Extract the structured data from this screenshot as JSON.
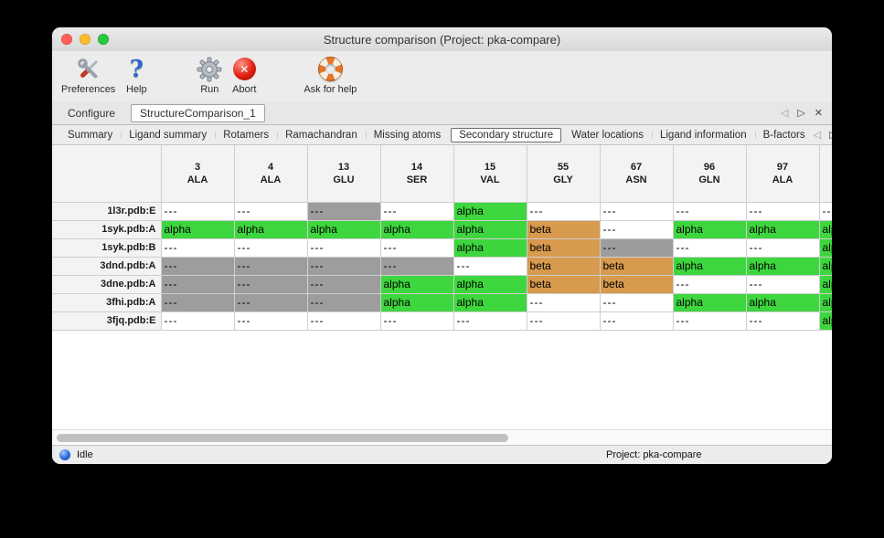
{
  "colors": {
    "alpha": "#3ed63e",
    "beta": "#d79a4e",
    "missing": "#9d9d9d",
    "blank": "#ffffff",
    "status_ball": "#2b6ae0",
    "traffic_close": "#ff5f57",
    "traffic_minimize": "#febc2e",
    "traffic_zoom": "#28c840"
  },
  "window": {
    "title": "Structure comparison (Project: pka-compare)"
  },
  "toolbar": {
    "items": [
      {
        "name": "preferences",
        "label": "Preferences",
        "icon": "tools-icon",
        "gap_before": false
      },
      {
        "name": "help",
        "label": "Help",
        "icon": "question-icon",
        "gap_before": false
      },
      {
        "name": "run",
        "label": "Run",
        "icon": "gear-icon",
        "gap_before": true
      },
      {
        "name": "abort",
        "label": "Abort",
        "icon": "abort-icon",
        "gap_before": false
      },
      {
        "name": "ask-for-help",
        "label": "Ask for help",
        "icon": "lifering-icon",
        "gap_before": true
      }
    ]
  },
  "tabs": {
    "items": [
      {
        "label": "Configure",
        "selected": false
      },
      {
        "label": "StructureComparison_1",
        "selected": true
      }
    ],
    "controls": {
      "prev": "◁",
      "next": "▷",
      "close": "✕"
    }
  },
  "subtabs": {
    "items": [
      {
        "label": "Summary",
        "selected": false
      },
      {
        "label": "Ligand summary",
        "selected": false
      },
      {
        "label": "Rotamers",
        "selected": false
      },
      {
        "label": "Ramachandran",
        "selected": false
      },
      {
        "label": "Missing atoms",
        "selected": false
      },
      {
        "label": "Secondary structure",
        "selected": true
      },
      {
        "label": "Water locations",
        "selected": false
      },
      {
        "label": "Ligand information",
        "selected": false
      },
      {
        "label": "B-factors",
        "selected": false
      }
    ],
    "controls": {
      "prev": "◁",
      "next": "▷"
    }
  },
  "table": {
    "columns": [
      {
        "num": "3",
        "res": "ALA"
      },
      {
        "num": "4",
        "res": "ALA"
      },
      {
        "num": "13",
        "res": "GLU"
      },
      {
        "num": "14",
        "res": "SER"
      },
      {
        "num": "15",
        "res": "VAL"
      },
      {
        "num": "55",
        "res": "GLY"
      },
      {
        "num": "67",
        "res": "ASN"
      },
      {
        "num": "96",
        "res": "GLN"
      },
      {
        "num": "97",
        "res": "ALA"
      },
      {
        "num": "",
        "res": ""
      }
    ],
    "rows": [
      {
        "label": "1l3r.pdb:E",
        "cells": [
          {
            "text": "---",
            "kind": "blank"
          },
          {
            "text": "---",
            "kind": "blank"
          },
          {
            "text": "---",
            "kind": "missing"
          },
          {
            "text": "---",
            "kind": "blank"
          },
          {
            "text": "alpha",
            "kind": "alpha"
          },
          {
            "text": "---",
            "kind": "blank"
          },
          {
            "text": "---",
            "kind": "blank"
          },
          {
            "text": "---",
            "kind": "blank"
          },
          {
            "text": "---",
            "kind": "blank"
          },
          {
            "text": "---",
            "kind": "blank"
          }
        ]
      },
      {
        "label": "1syk.pdb:A",
        "cells": [
          {
            "text": "alpha",
            "kind": "alpha"
          },
          {
            "text": "alpha",
            "kind": "alpha"
          },
          {
            "text": "alpha",
            "kind": "alpha"
          },
          {
            "text": "alpha",
            "kind": "alpha"
          },
          {
            "text": "alpha",
            "kind": "alpha"
          },
          {
            "text": "beta",
            "kind": "beta"
          },
          {
            "text": "---",
            "kind": "blank"
          },
          {
            "text": "alpha",
            "kind": "alpha"
          },
          {
            "text": "alpha",
            "kind": "alpha"
          },
          {
            "text": "alpha",
            "kind": "alpha"
          }
        ]
      },
      {
        "label": "1syk.pdb:B",
        "cells": [
          {
            "text": "---",
            "kind": "blank"
          },
          {
            "text": "---",
            "kind": "blank"
          },
          {
            "text": "---",
            "kind": "blank"
          },
          {
            "text": "---",
            "kind": "blank"
          },
          {
            "text": "alpha",
            "kind": "alpha"
          },
          {
            "text": "beta",
            "kind": "beta"
          },
          {
            "text": "---",
            "kind": "missing"
          },
          {
            "text": "---",
            "kind": "blank"
          },
          {
            "text": "---",
            "kind": "blank"
          },
          {
            "text": "alpha",
            "kind": "alpha"
          }
        ]
      },
      {
        "label": "3dnd.pdb:A",
        "cells": [
          {
            "text": "---",
            "kind": "missing"
          },
          {
            "text": "---",
            "kind": "missing"
          },
          {
            "text": "---",
            "kind": "missing"
          },
          {
            "text": "---",
            "kind": "missing"
          },
          {
            "text": "---",
            "kind": "blank"
          },
          {
            "text": "beta",
            "kind": "beta"
          },
          {
            "text": "beta",
            "kind": "beta"
          },
          {
            "text": "alpha",
            "kind": "alpha"
          },
          {
            "text": "alpha",
            "kind": "alpha"
          },
          {
            "text": "alpha",
            "kind": "alpha"
          }
        ]
      },
      {
        "label": "3dne.pdb:A",
        "cells": [
          {
            "text": "---",
            "kind": "missing"
          },
          {
            "text": "---",
            "kind": "missing"
          },
          {
            "text": "---",
            "kind": "missing"
          },
          {
            "text": "alpha",
            "kind": "alpha"
          },
          {
            "text": "alpha",
            "kind": "alpha"
          },
          {
            "text": "beta",
            "kind": "beta"
          },
          {
            "text": "beta",
            "kind": "beta"
          },
          {
            "text": "---",
            "kind": "blank"
          },
          {
            "text": "---",
            "kind": "blank"
          },
          {
            "text": "alpha",
            "kind": "alpha"
          }
        ]
      },
      {
        "label": "3fhi.pdb:A",
        "cells": [
          {
            "text": "---",
            "kind": "missing"
          },
          {
            "text": "---",
            "kind": "missing"
          },
          {
            "text": "---",
            "kind": "missing"
          },
          {
            "text": "alpha",
            "kind": "alpha"
          },
          {
            "text": "alpha",
            "kind": "alpha"
          },
          {
            "text": "---",
            "kind": "blank"
          },
          {
            "text": "---",
            "kind": "blank"
          },
          {
            "text": "alpha",
            "kind": "alpha"
          },
          {
            "text": "alpha",
            "kind": "alpha"
          },
          {
            "text": "alpha",
            "kind": "alpha"
          }
        ]
      },
      {
        "label": "3fjq.pdb:E",
        "cells": [
          {
            "text": "---",
            "kind": "blank"
          },
          {
            "text": "---",
            "kind": "blank"
          },
          {
            "text": "---",
            "kind": "blank"
          },
          {
            "text": "---",
            "kind": "blank"
          },
          {
            "text": "---",
            "kind": "blank"
          },
          {
            "text": "---",
            "kind": "blank"
          },
          {
            "text": "---",
            "kind": "blank"
          },
          {
            "text": "---",
            "kind": "blank"
          },
          {
            "text": "---",
            "kind": "blank"
          },
          {
            "text": "alpha",
            "kind": "alpha"
          }
        ]
      }
    ]
  },
  "statusbar": {
    "status": "Idle",
    "project": "Project: pka-compare"
  }
}
